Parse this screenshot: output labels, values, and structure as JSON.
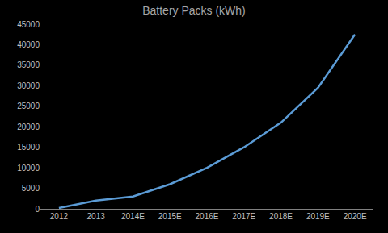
{
  "chart_data": {
    "type": "line",
    "title": "Battery Packs (kWh)",
    "categories": [
      "2012",
      "2013",
      "2014E",
      "2015E",
      "2016E",
      "2017E",
      "2018E",
      "2019E",
      "2020E"
    ],
    "values": [
      200,
      2000,
      3000,
      6000,
      10000,
      15000,
      21000,
      29500,
      42500
    ],
    "color": "#5b9bd5",
    "ylim": [
      0,
      45000
    ],
    "yticks": [
      0,
      5000,
      10000,
      15000,
      20000,
      25000,
      30000,
      35000,
      40000,
      45000
    ],
    "grid": false
  }
}
